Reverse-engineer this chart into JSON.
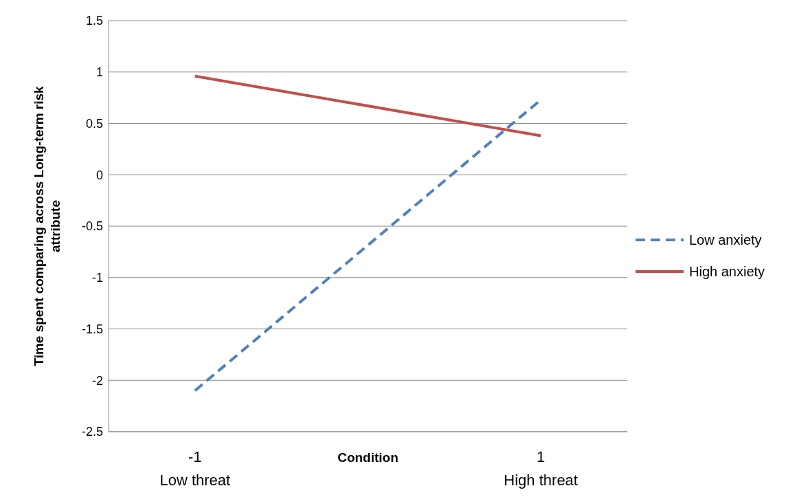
{
  "chart_data": {
    "type": "line",
    "xlabel": "Condition",
    "ylabel": "Time spent comparing across Long-term risk attribute",
    "xlim": [
      -1.5,
      1.5
    ],
    "xticks": [
      {
        "value": -1,
        "label": "-1\nLow threat"
      },
      {
        "value": 1,
        "label": "1\nHigh threat"
      }
    ],
    "x": [
      -1,
      1
    ],
    "ylim": [
      -2.5,
      1.5
    ],
    "yticks": [
      -2.5,
      -2,
      -1.5,
      -1,
      -0.5,
      0,
      0.5,
      1,
      1.5
    ],
    "grid": "y",
    "legend": "right",
    "marker": "none",
    "series": [
      {
        "name": "Low anxiety",
        "color": "#4f81bd",
        "line_style": "dashed",
        "values": [
          -2.1,
          0.73
        ]
      },
      {
        "name": "High anxiety",
        "color": "#c0504d",
        "line_style": "solid",
        "values": [
          0.96,
          0.38
        ]
      }
    ]
  }
}
